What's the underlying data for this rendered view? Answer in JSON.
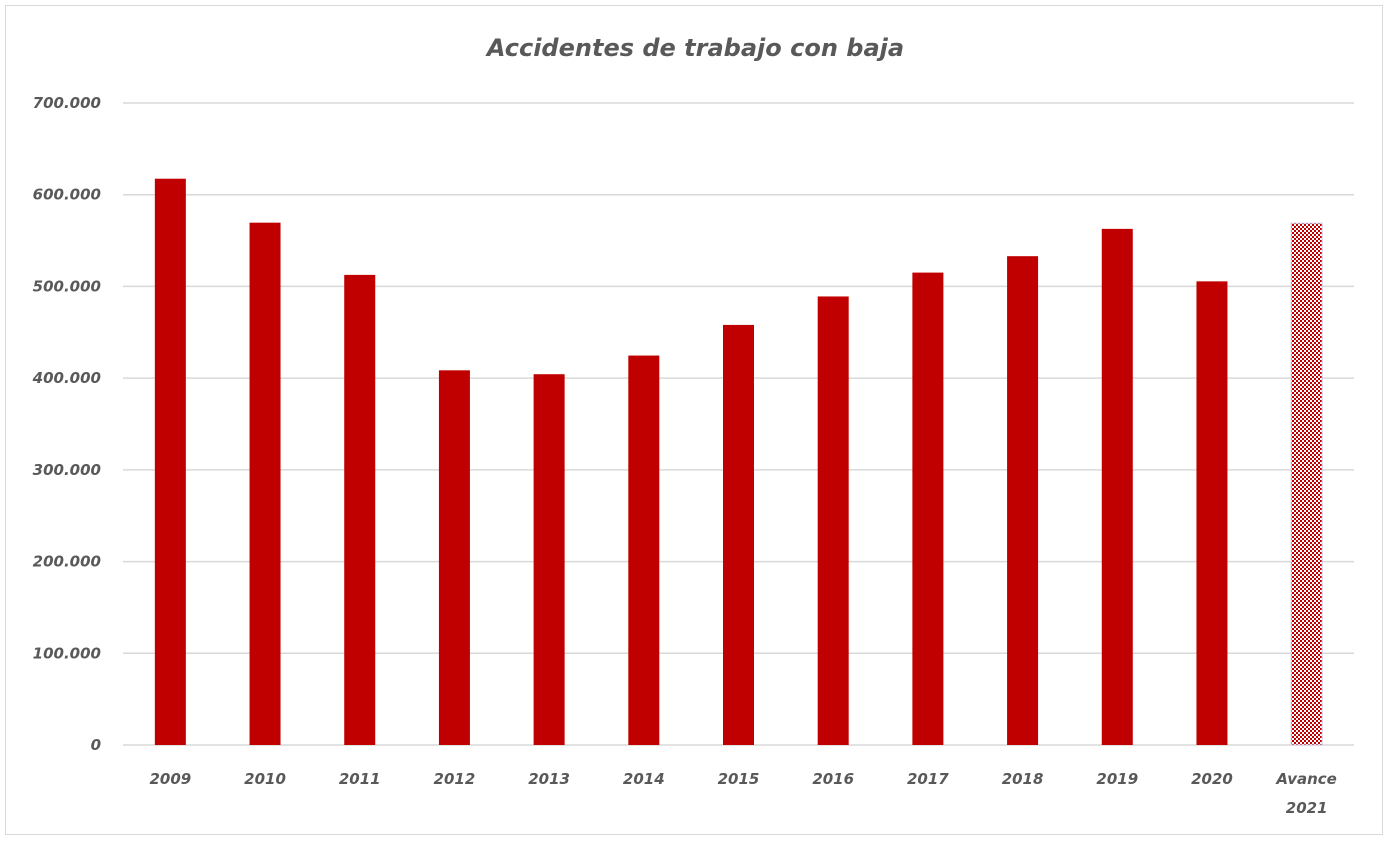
{
  "chart_data": {
    "type": "bar",
    "title": "Accidentes de trabajo con baja",
    "categories": [
      "2009",
      "2010",
      "2011",
      "2012",
      "2013",
      "2014",
      "2015",
      "2016",
      "2017",
      "2018",
      "2019",
      "2020",
      "Avance 2021"
    ],
    "category_lines": [
      [
        "2009"
      ],
      [
        "2010"
      ],
      [
        "2011"
      ],
      [
        "2012"
      ],
      [
        "2013"
      ],
      [
        "2014"
      ],
      [
        "2015"
      ],
      [
        "2016"
      ],
      [
        "2017"
      ],
      [
        "2018"
      ],
      [
        "2019"
      ],
      [
        "2020"
      ],
      [
        "Avance",
        "2021"
      ]
    ],
    "values": [
      617440,
      569523,
      512584,
      408537,
      404284,
      424625,
      458023,
      489065,
      515082,
      532977,
      562756,
      505528,
      569000
    ],
    "patterned": [
      false,
      false,
      false,
      false,
      false,
      false,
      false,
      false,
      false,
      false,
      false,
      false,
      true
    ],
    "ylim": [
      0,
      700000
    ],
    "yticks": [
      0,
      100000,
      200000,
      300000,
      400000,
      500000,
      600000,
      700000
    ],
    "ytick_labels": [
      "0",
      "100.000",
      "200.000",
      "300.000",
      "400.000",
      "500.000",
      "600.000",
      "700.000"
    ],
    "xlabel": "",
    "ylabel": "",
    "grid": true,
    "legend": "none",
    "colors": {
      "bar": "#c00000",
      "grid": "#d9d9d9",
      "text": "#595959"
    }
  }
}
